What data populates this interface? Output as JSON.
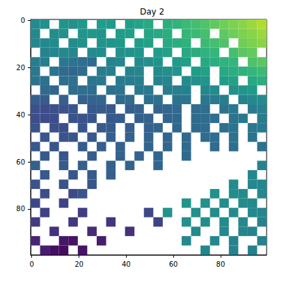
{
  "chart_data": {
    "type": "heatmap",
    "title": "Day 2",
    "x": [
      1.5,
      5.5,
      9.5,
      13.5,
      17.5,
      21.5,
      25.5,
      29.5,
      33.5,
      37.5,
      41.5,
      45.5,
      49.5,
      53.5,
      57.5,
      61.5,
      65.5,
      69.5,
      73.5,
      77.5,
      81.5,
      85.5,
      89.5,
      93.5,
      97.5
    ],
    "y": [
      1.5,
      5.5,
      9.5,
      13.5,
      17.5,
      21.5,
      25.5,
      29.5,
      33.5,
      37.5,
      41.5,
      45.5,
      49.5,
      53.5,
      57.5,
      61.5,
      65.5,
      69.5,
      73.5,
      77.5,
      81.5,
      85.5,
      89.5,
      93.5,
      97.5
    ],
    "values": [
      [
        0.48,
        0.5,
        null,
        0.52,
        0.5,
        0.53,
        null,
        0.55,
        0.54,
        null,
        0.56,
        0.58,
        0.6,
        null,
        0.62,
        0.65,
        0.68,
        0.7,
        0.72,
        0.75,
        0.78,
        0.8,
        0.82,
        0.85,
        0.88
      ],
      [
        0.47,
        null,
        0.49,
        0.5,
        null,
        0.52,
        0.53,
        0.52,
        null,
        0.55,
        0.56,
        null,
        0.58,
        0.6,
        0.62,
        null,
        0.66,
        0.68,
        0.7,
        null,
        0.75,
        0.78,
        0.8,
        0.82,
        0.85
      ],
      [
        0.46,
        0.47,
        0.48,
        null,
        0.49,
        0.5,
        null,
        0.51,
        0.52,
        0.53,
        null,
        0.55,
        0.57,
        null,
        0.6,
        0.62,
        0.64,
        null,
        0.68,
        0.7,
        0.72,
        null,
        0.78,
        0.8,
        0.82
      ],
      [
        null,
        0.45,
        0.46,
        0.47,
        0.46,
        null,
        0.48,
        0.49,
        null,
        0.5,
        0.51,
        0.52,
        null,
        0.55,
        0.57,
        null,
        0.6,
        0.62,
        0.64,
        0.66,
        null,
        0.7,
        0.74,
        0.76,
        null
      ],
      [
        0.42,
        0.43,
        null,
        0.4,
        0.38,
        0.36,
        0.35,
        null,
        0.45,
        0.46,
        null,
        0.48,
        0.5,
        0.51,
        null,
        0.54,
        0.56,
        null,
        0.6,
        0.62,
        0.64,
        0.66,
        null,
        0.72,
        0.74
      ],
      [
        0.4,
        null,
        0.38,
        0.34,
        0.33,
        0.35,
        null,
        0.42,
        0.43,
        null,
        0.45,
        0.46,
        null,
        0.48,
        0.5,
        0.52,
        null,
        0.55,
        0.57,
        null,
        0.6,
        0.62,
        0.64,
        0.66,
        0.68
      ],
      [
        0.38,
        0.37,
        null,
        0.36,
        0.37,
        null,
        0.39,
        0.4,
        null,
        0.41,
        0.42,
        0.43,
        null,
        0.45,
        0.46,
        null,
        0.48,
        0.5,
        0.52,
        null,
        0.55,
        0.57,
        null,
        0.6,
        0.62
      ],
      [
        null,
        0.34,
        0.33,
        null,
        0.35,
        0.36,
        0.36,
        null,
        0.37,
        0.38,
        null,
        0.4,
        0.41,
        null,
        0.42,
        0.43,
        0.44,
        null,
        0.46,
        0.48,
        null,
        0.5,
        0.52,
        0.54,
        null
      ],
      [
        0.3,
        0.29,
        null,
        0.3,
        null,
        0.31,
        0.32,
        0.33,
        null,
        0.34,
        0.35,
        null,
        0.36,
        0.37,
        null,
        0.38,
        0.39,
        null,
        0.4,
        0.42,
        0.43,
        null,
        0.45,
        0.47,
        0.48
      ],
      [
        0.25,
        0.24,
        0.25,
        0.26,
        0.27,
        null,
        0.28,
        0.29,
        0.28,
        null,
        0.3,
        0.31,
        null,
        0.32,
        0.33,
        0.34,
        null,
        0.35,
        0.36,
        null,
        0.38,
        0.4,
        null,
        0.42,
        0.44
      ],
      [
        0.24,
        0.23,
        0.24,
        null,
        0.25,
        0.26,
        0.27,
        null,
        0.28,
        0.29,
        null,
        0.3,
        0.31,
        null,
        0.32,
        0.33,
        null,
        0.34,
        0.35,
        0.36,
        null,
        0.38,
        0.4,
        null,
        0.42
      ],
      [
        0.26,
        null,
        0.25,
        0.24,
        null,
        0.27,
        null,
        0.28,
        0.29,
        null,
        0.3,
        null,
        0.31,
        0.32,
        null,
        0.33,
        null,
        0.34,
        0.35,
        null,
        0.36,
        0.38,
        null,
        0.4,
        0.41
      ],
      [
        null,
        0.27,
        null,
        0.26,
        0.27,
        null,
        0.28,
        null,
        0.3,
        null,
        0.31,
        null,
        0.32,
        null,
        0.33,
        null,
        0.34,
        null,
        0.35,
        0.36,
        null,
        0.37,
        null,
        0.38,
        null
      ],
      [
        0.28,
        null,
        0.27,
        null,
        null,
        0.29,
        null,
        0.3,
        null,
        0.31,
        null,
        null,
        0.32,
        null,
        0.33,
        null,
        0.34,
        null,
        null,
        0.35,
        null,
        0.36,
        null,
        null,
        0.37
      ],
      [
        null,
        0.28,
        null,
        0.27,
        null,
        null,
        0.3,
        null,
        null,
        0.31,
        null,
        0.32,
        null,
        0.33,
        null,
        null,
        0.34,
        null,
        null,
        null,
        null,
        null,
        null,
        null,
        null
      ],
      [
        0.3,
        null,
        null,
        0.29,
        null,
        0.3,
        null,
        null,
        0.31,
        null,
        0.32,
        null,
        null,
        0.33,
        null,
        null,
        null,
        null,
        null,
        null,
        null,
        null,
        null,
        null,
        0.45
      ],
      [
        null,
        0.28,
        null,
        null,
        0.27,
        null,
        0.29,
        null,
        0.3,
        null,
        null,
        null,
        null,
        null,
        null,
        null,
        null,
        null,
        null,
        null,
        null,
        null,
        null,
        0.46,
        null
      ],
      [
        0.26,
        null,
        null,
        0.25,
        null,
        null,
        0.27,
        null,
        null,
        null,
        null,
        null,
        null,
        null,
        null,
        null,
        null,
        null,
        null,
        null,
        null,
        0.48,
        null,
        0.47,
        0.46
      ],
      [
        null,
        0.24,
        null,
        null,
        0.22,
        0.26,
        null,
        null,
        null,
        null,
        null,
        null,
        null,
        null,
        null,
        null,
        null,
        null,
        null,
        0.5,
        null,
        0.49,
        0.48,
        null,
        0.47
      ],
      [
        0.22,
        null,
        null,
        0.2,
        null,
        null,
        null,
        null,
        null,
        null,
        null,
        null,
        null,
        null,
        null,
        null,
        0.52,
        null,
        0.5,
        null,
        0.49,
        null,
        0.48,
        0.47,
        null
      ],
      [
        null,
        0.2,
        null,
        null,
        null,
        0.18,
        null,
        null,
        null,
        null,
        null,
        null,
        0.22,
        null,
        0.51,
        null,
        null,
        0.5,
        null,
        0.49,
        null,
        0.48,
        null,
        0.47,
        0.46
      ],
      [
        0.18,
        null,
        null,
        null,
        0.16,
        null,
        null,
        null,
        0.15,
        null,
        null,
        null,
        null,
        0.2,
        null,
        null,
        0.5,
        null,
        0.49,
        null,
        0.48,
        null,
        0.47,
        null,
        0.45
      ],
      [
        null,
        null,
        0.14,
        null,
        null,
        null,
        0.12,
        null,
        null,
        null,
        0.14,
        null,
        null,
        null,
        null,
        null,
        null,
        0.48,
        null,
        null,
        0.47,
        null,
        0.46,
        0.45,
        null
      ],
      [
        0.1,
        null,
        null,
        0.06,
        0.05,
        null,
        null,
        0.08,
        null,
        null,
        null,
        null,
        null,
        null,
        null,
        null,
        0.47,
        null,
        null,
        0.46,
        null,
        0.45,
        null,
        null,
        0.44
      ],
      [
        null,
        0.08,
        0.04,
        0.03,
        null,
        0.05,
        null,
        null,
        null,
        null,
        null,
        null,
        null,
        null,
        null,
        null,
        null,
        null,
        0.46,
        null,
        null,
        0.45,
        null,
        0.44,
        null
      ]
    ],
    "color_range": [
      0,
      1
    ],
    "xlim": [
      -0.5,
      99.5
    ],
    "ylim": [
      99.5,
      -0.5
    ],
    "xticks": [
      0,
      20,
      40,
      60,
      80
    ],
    "yticks": [
      0,
      20,
      40,
      60,
      80
    ],
    "grid": false
  }
}
